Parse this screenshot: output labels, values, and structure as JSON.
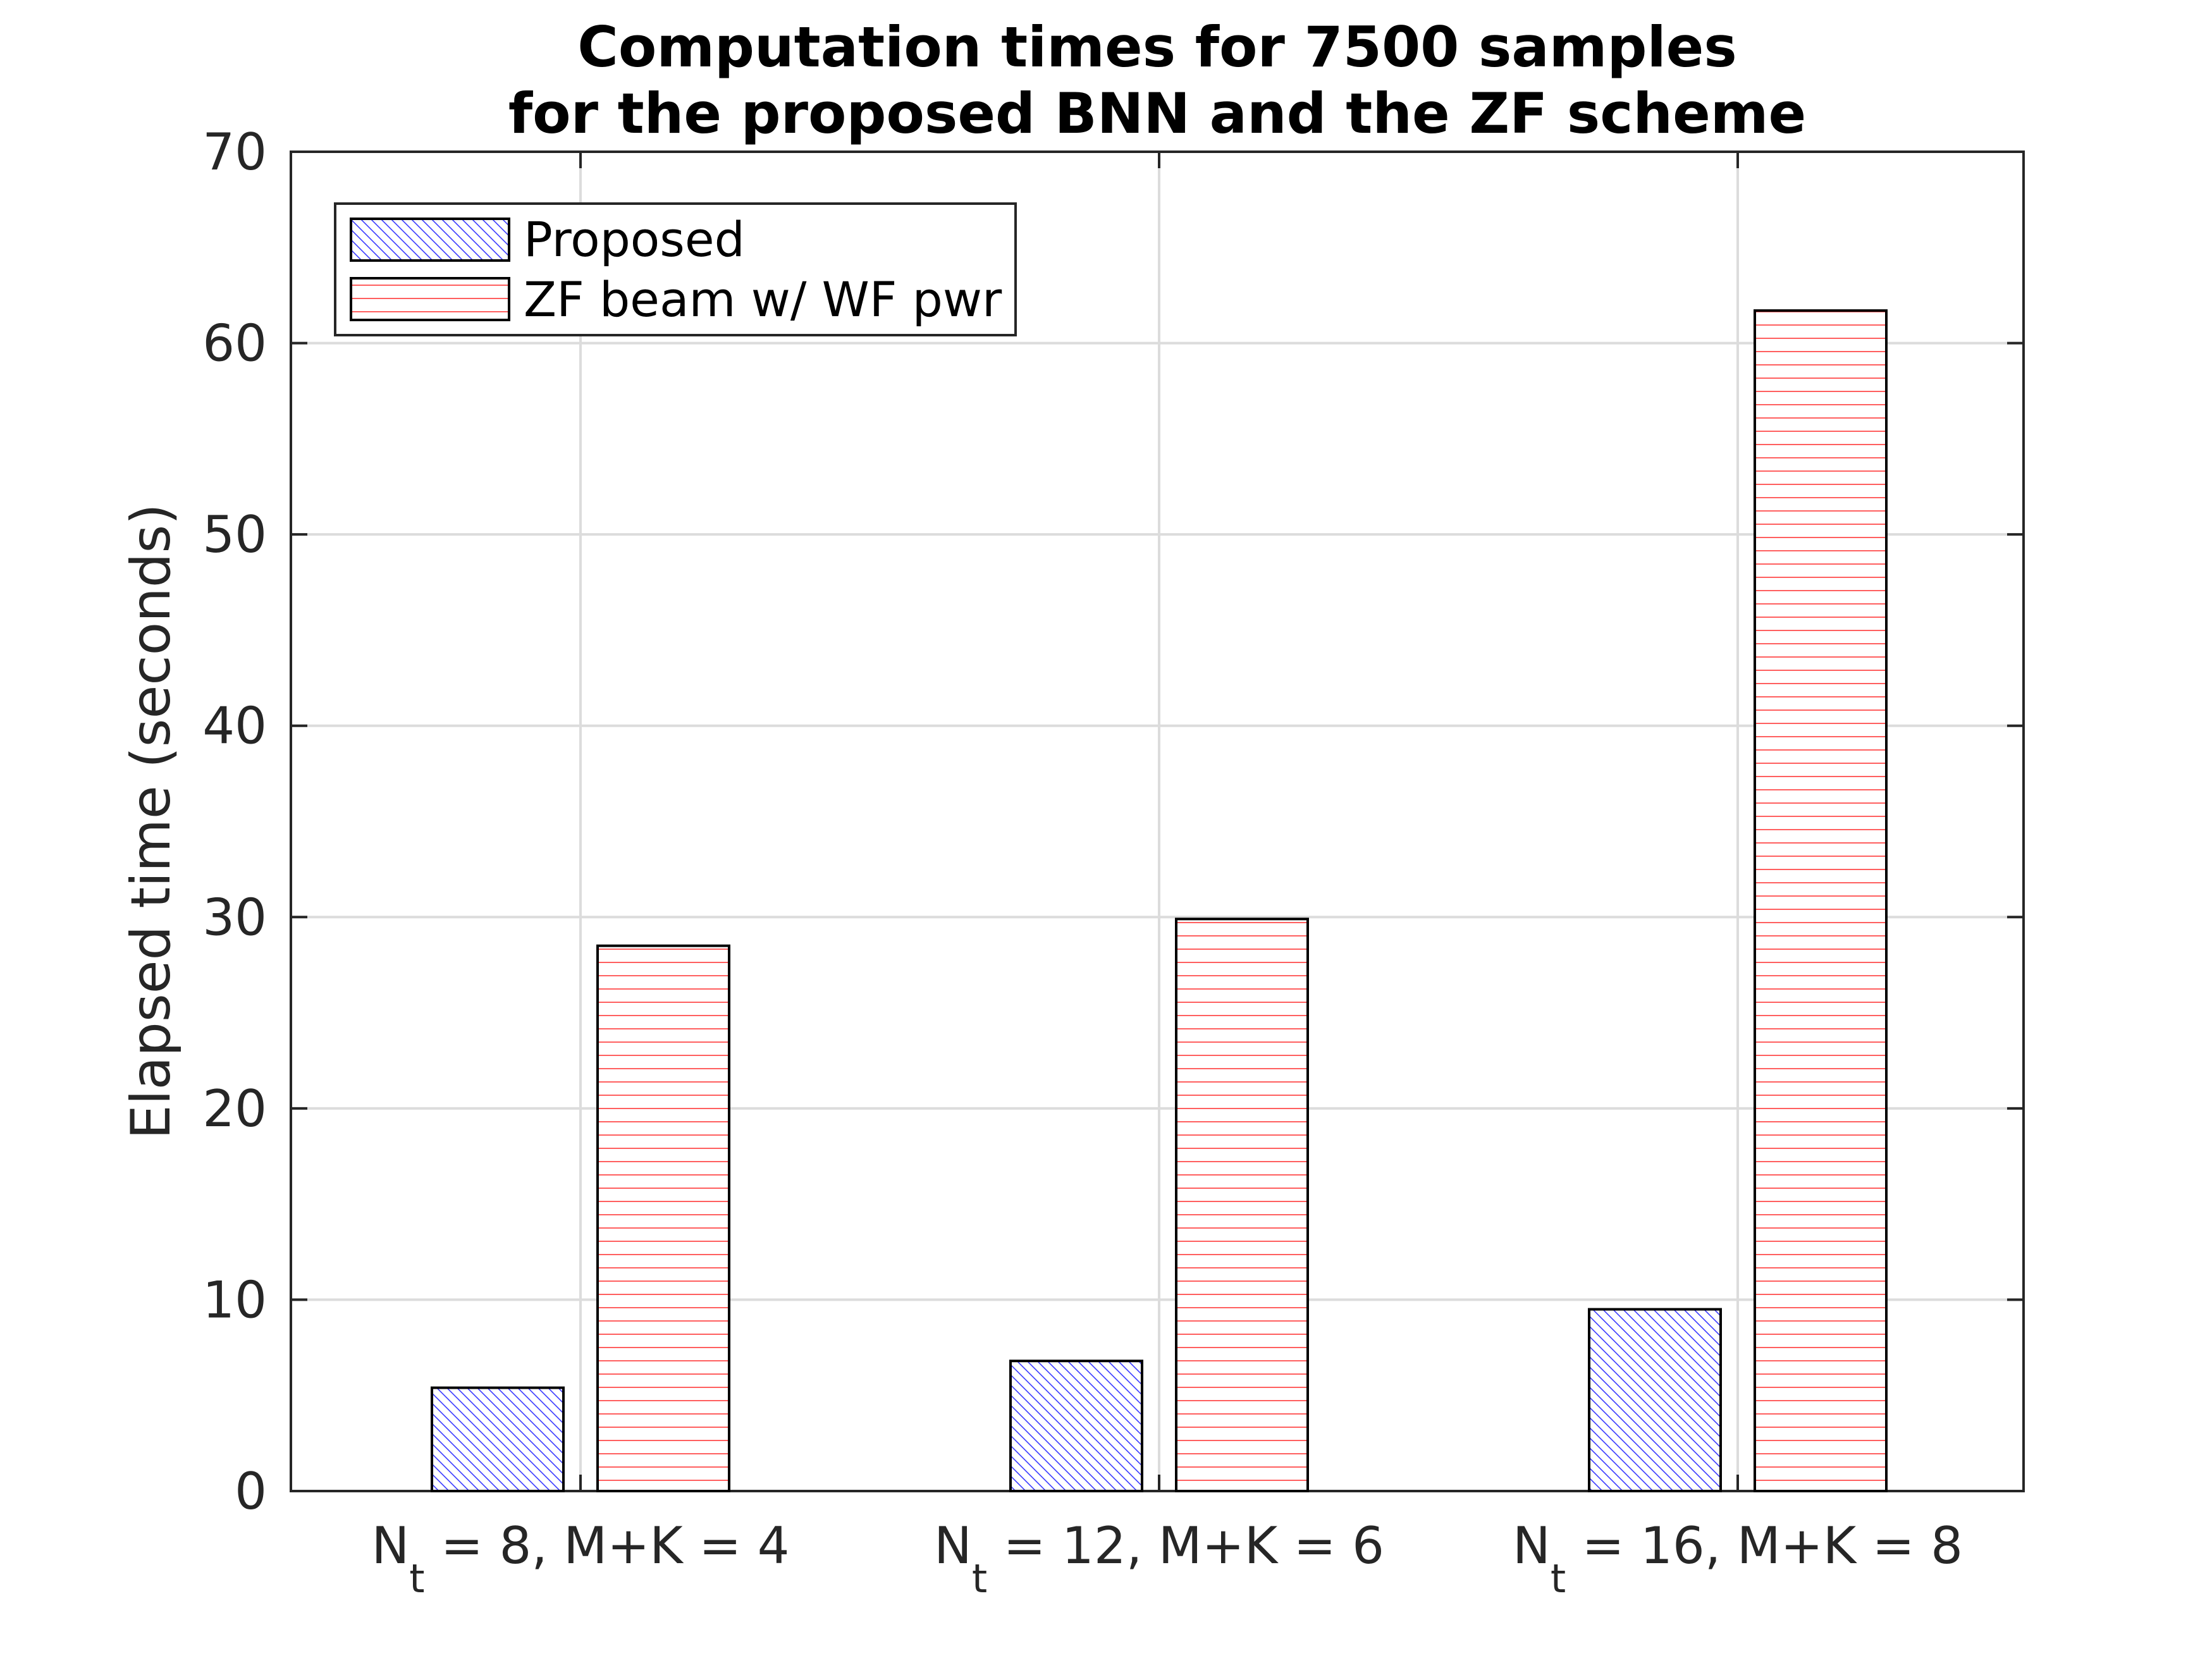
{
  "chart_data": {
    "type": "bar",
    "title": "Computation times for 7500 samples",
    "subtitle": "for the proposed BNN and the ZF scheme",
    "xlabel": "",
    "ylabel": "Elapsed time (seconds)",
    "ylim": [
      0,
      70
    ],
    "yticks": [
      "0",
      "10",
      "20",
      "30",
      "40",
      "50",
      "60",
      "70"
    ],
    "grid": true,
    "legend_position": "top-left",
    "categories": [
      {
        "main": "N",
        "sub": "t",
        "rest": " = 8, M+K = 4"
      },
      {
        "main": "N",
        "sub": "t",
        "rest": " = 12, M+K = 6"
      },
      {
        "main": "N",
        "sub": "t",
        "rest": " = 16, M+K = 8"
      }
    ],
    "series": [
      {
        "name": "Proposed",
        "values": [
          5.4,
          6.8,
          9.5
        ],
        "color": "#3b3bff",
        "hatch": "diagonal"
      },
      {
        "name": "ZF beam w/ WF pwr",
        "values": [
          28.5,
          29.9,
          61.7
        ],
        "color": "#ff4d4d",
        "hatch": "horizontal"
      }
    ]
  }
}
